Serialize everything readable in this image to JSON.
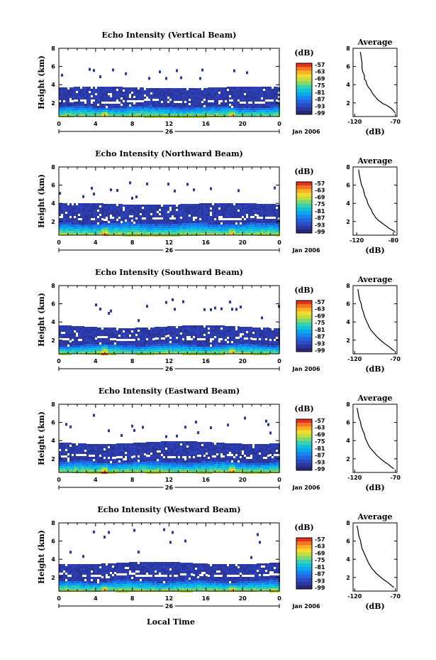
{
  "figure": {
    "x_axis_label": "Local Time",
    "date_label": "Jan 2006",
    "day_label": "26",
    "colorbar_unit": "(dB)"
  },
  "chart_data": [
    {
      "type": "heatmap",
      "title": "Echo Intensity (Vertical Beam)",
      "ylabel": "Height (km)",
      "xlabel": "Local Time",
      "xticks": [
        "0",
        "4",
        "8",
        "12",
        "16",
        "20",
        "0"
      ],
      "yticks": [
        "2",
        "4",
        "6",
        "8"
      ],
      "xlim": [
        0,
        24
      ],
      "ylim": [
        0.5,
        8
      ],
      "colorbar": {
        "unit": "(dB)",
        "labels": [
          "-57",
          "-63",
          "-69",
          "-75",
          "-81",
          "-87",
          "-93",
          "-99"
        ],
        "range": [
          -99,
          -57
        ]
      },
      "structure": {
        "layer_top_km": [
          3.55,
          3.75
        ],
        "dense_top_km": 1.65,
        "upper_clutter_km": [
          4.8,
          5.9
        ]
      },
      "profile": {
        "title": "Average",
        "xlabel": "(dB)",
        "xticks": [
          "-120",
          "-70"
        ],
        "xlim": [
          -122,
          -68
        ],
        "yticks": [
          "2",
          "4",
          "6",
          "8"
        ],
        "ylim": [
          0.5,
          8
        ],
        "points": [
          [
            -113,
            7.6
          ],
          [
            -112,
            7.0
          ],
          [
            -111,
            6.4
          ],
          [
            -111,
            5.8
          ],
          [
            -110,
            5.4
          ],
          [
            -108,
            5.0
          ],
          [
            -108,
            4.6
          ],
          [
            -106,
            4.4
          ],
          [
            -105,
            4.0
          ],
          [
            -103,
            3.7
          ],
          [
            -101,
            3.5
          ],
          [
            -99,
            3.2
          ],
          [
            -97,
            2.9
          ],
          [
            -94,
            2.6
          ],
          [
            -91,
            2.3
          ],
          [
            -88,
            2.1
          ],
          [
            -85,
            1.9
          ],
          [
            -80,
            1.7
          ],
          [
            -75,
            1.4
          ],
          [
            -72,
            1.1
          ],
          [
            -70,
            0.9
          ]
        ]
      }
    },
    {
      "type": "heatmap",
      "title": "Echo Intensity (Northward Beam)",
      "ylabel": "Height (km)",
      "xlabel": "Local Time",
      "xticks": [
        "0",
        "4",
        "8",
        "12",
        "16",
        "20",
        "0"
      ],
      "yticks": [
        "2",
        "4",
        "6",
        "8"
      ],
      "xlim": [
        0,
        24
      ],
      "ylim": [
        0.5,
        8
      ],
      "colorbar": {
        "unit": "(dB)",
        "labels": [
          "-57",
          "-63",
          "-69",
          "-75",
          "-81",
          "-87",
          "-93",
          "-99"
        ],
        "range": [
          -99,
          -57
        ]
      },
      "structure": {
        "layer_top_km": [
          3.8,
          4.0
        ],
        "dense_top_km": 1.9,
        "upper_clutter_km": [
          4.5,
          6.5
        ]
      },
      "profile": {
        "title": "Average",
        "xlabel": "(dB)",
        "xticks": [
          "-120",
          "-80"
        ],
        "xlim": [
          -124,
          -76
        ],
        "yticks": [
          "2",
          "4",
          "6",
          "8"
        ],
        "ylim": [
          0.5,
          8
        ],
        "points": [
          [
            -118,
            7.7
          ],
          [
            -117,
            7.1
          ],
          [
            -116,
            6.6
          ],
          [
            -115,
            6.1
          ],
          [
            -113,
            5.6
          ],
          [
            -112,
            5.2
          ],
          [
            -111,
            4.8
          ],
          [
            -109,
            4.4
          ],
          [
            -108,
            4.0
          ],
          [
            -106,
            3.6
          ],
          [
            -104,
            3.3
          ],
          [
            -103,
            3.0
          ],
          [
            -101,
            2.7
          ],
          [
            -99,
            2.4
          ],
          [
            -96,
            2.1
          ],
          [
            -92,
            1.8
          ],
          [
            -88,
            1.5
          ],
          [
            -84,
            1.2
          ],
          [
            -80,
            1.0
          ],
          [
            -78,
            0.8
          ]
        ]
      }
    },
    {
      "type": "heatmap",
      "title": "Echo Intensity (Southward Beam)",
      "ylabel": "Height (km)",
      "xlabel": "Local Time",
      "xticks": [
        "0",
        "4",
        "8",
        "12",
        "16",
        "20",
        "0"
      ],
      "yticks": [
        "2",
        "4",
        "6",
        "8"
      ],
      "xlim": [
        0,
        24
      ],
      "ylim": [
        0.5,
        8
      ],
      "colorbar": {
        "unit": "(dB)",
        "labels": [
          "-57",
          "-63",
          "-69",
          "-75",
          "-81",
          "-87",
          "-93",
          "-99"
        ],
        "range": [
          -99,
          -57
        ]
      },
      "structure": {
        "layer_top_km": [
          3.3,
          3.6
        ],
        "dense_top_km": 1.6,
        "upper_clutter_km": [
          4.2,
          6.8
        ]
      },
      "profile": {
        "title": "Average",
        "xlabel": "(dB)",
        "xticks": [
          "-120",
          "-70"
        ],
        "xlim": [
          -122,
          -68
        ],
        "yticks": [
          "2",
          "4",
          "6",
          "8"
        ],
        "ylim": [
          0.5,
          8
        ],
        "points": [
          [
            -116,
            7.6
          ],
          [
            -115,
            7.0
          ],
          [
            -114,
            6.5
          ],
          [
            -112,
            6.0
          ],
          [
            -111,
            5.5
          ],
          [
            -109,
            5.0
          ],
          [
            -108,
            4.6
          ],
          [
            -106,
            4.2
          ],
          [
            -104,
            3.8
          ],
          [
            -102,
            3.4
          ],
          [
            -100,
            3.1
          ],
          [
            -97,
            2.8
          ],
          [
            -94,
            2.5
          ],
          [
            -91,
            2.2
          ],
          [
            -87,
            1.9
          ],
          [
            -83,
            1.6
          ],
          [
            -78,
            1.3
          ],
          [
            -74,
            1.0
          ],
          [
            -71,
            0.8
          ]
        ]
      }
    },
    {
      "type": "heatmap",
      "title": "Echo Intensity (Eastward Beam)",
      "ylabel": "Height (km)",
      "xlabel": "Local Time",
      "xticks": [
        "0",
        "4",
        "8",
        "12",
        "16",
        "20",
        "0"
      ],
      "yticks": [
        "2",
        "4",
        "6",
        "8"
      ],
      "xlim": [
        0,
        24
      ],
      "ylim": [
        0.5,
        8
      ],
      "colorbar": {
        "unit": "(dB)",
        "labels": [
          "-57",
          "-63",
          "-69",
          "-75",
          "-81",
          "-87",
          "-93",
          "-99"
        ],
        "range": [
          -99,
          -57
        ]
      },
      "structure": {
        "layer_top_km": [
          3.6,
          3.9
        ],
        "dense_top_km": 1.75,
        "upper_clutter_km": [
          4.5,
          7.0
        ]
      },
      "profile": {
        "title": "Average",
        "xlabel": "(dB)",
        "xticks": [
          "-120",
          "-70"
        ],
        "xlim": [
          -122,
          -68
        ],
        "yticks": [
          "2",
          "4",
          "6",
          "8"
        ],
        "ylim": [
          0.5,
          8
        ],
        "points": [
          [
            -117,
            7.6
          ],
          [
            -116,
            7.1
          ],
          [
            -115,
            6.6
          ],
          [
            -113,
            6.1
          ],
          [
            -112,
            5.6
          ],
          [
            -110,
            5.1
          ],
          [
            -108,
            4.7
          ],
          [
            -107,
            4.3
          ],
          [
            -105,
            3.9
          ],
          [
            -103,
            3.5
          ],
          [
            -101,
            3.2
          ],
          [
            -98,
            2.9
          ],
          [
            -95,
            2.6
          ],
          [
            -92,
            2.3
          ],
          [
            -88,
            2.0
          ],
          [
            -84,
            1.7
          ],
          [
            -79,
            1.4
          ],
          [
            -75,
            1.1
          ],
          [
            -72,
            0.9
          ]
        ]
      }
    },
    {
      "type": "heatmap",
      "title": "Echo Intensity (Westward Beam)",
      "ylabel": "Height (km)",
      "xlabel": "Local Time",
      "xticks": [
        "0",
        "4",
        "8",
        "12",
        "16",
        "20",
        "0"
      ],
      "yticks": [
        "2",
        "4",
        "6",
        "8"
      ],
      "xlim": [
        0,
        24
      ],
      "ylim": [
        0.5,
        8
      ],
      "colorbar": {
        "unit": "(dB)",
        "labels": [
          "-57",
          "-63",
          "-69",
          "-75",
          "-81",
          "-87",
          "-93",
          "-99"
        ],
        "range": [
          -99,
          -57
        ]
      },
      "structure": {
        "layer_top_km": [
          3.4,
          3.7
        ],
        "dense_top_km": 1.7,
        "upper_clutter_km": [
          4.3,
          7.5
        ]
      },
      "profile": {
        "title": "Average",
        "xlabel": "(dB)",
        "xticks": [
          "-120",
          "-70"
        ],
        "xlim": [
          -122,
          -68
        ],
        "yticks": [
          "2",
          "4",
          "6",
          "8"
        ],
        "ylim": [
          0.5,
          8
        ],
        "points": [
          [
            -117,
            7.7
          ],
          [
            -116,
            7.2
          ],
          [
            -115,
            6.6
          ],
          [
            -113,
            6.1
          ],
          [
            -112,
            5.6
          ],
          [
            -111,
            5.2
          ],
          [
            -109,
            4.8
          ],
          [
            -107,
            4.4
          ],
          [
            -105,
            4.0
          ],
          [
            -103,
            3.6
          ],
          [
            -101,
            3.3
          ],
          [
            -99,
            3.0
          ],
          [
            -96,
            2.7
          ],
          [
            -93,
            2.4
          ],
          [
            -89,
            2.1
          ],
          [
            -85,
            1.8
          ],
          [
            -80,
            1.5
          ],
          [
            -76,
            1.2
          ],
          [
            -72,
            0.9
          ]
        ]
      }
    }
  ]
}
